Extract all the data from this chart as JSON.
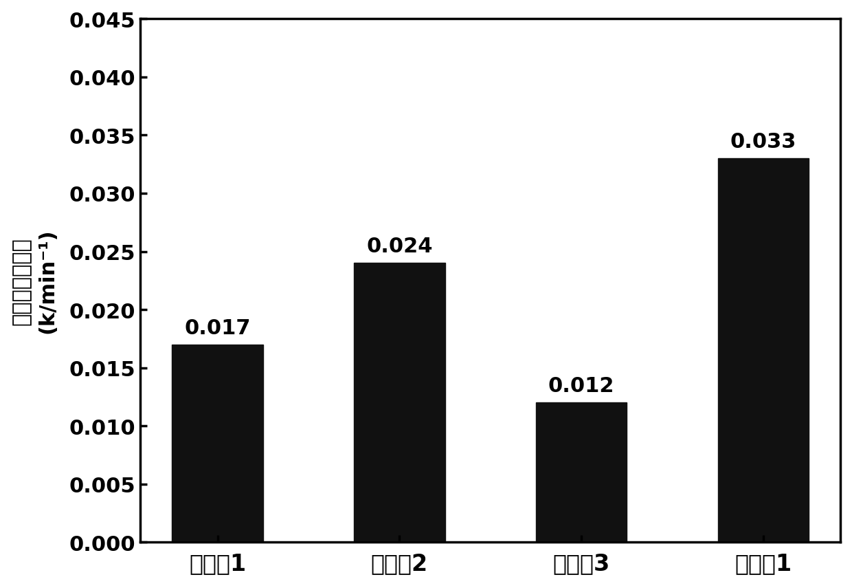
{
  "categories": [
    "对比例1",
    "对比例2",
    "对比例3",
    "实施例1"
  ],
  "values": [
    0.017,
    0.024,
    0.012,
    0.033
  ],
  "bar_color": "#111111",
  "ylabel_line1": "光降解反应常数",
  "ylabel_line2": "(k/min⁻¹)",
  "ylim": [
    0,
    0.045
  ],
  "yticks": [
    0.0,
    0.005,
    0.01,
    0.015,
    0.02,
    0.025,
    0.03,
    0.035,
    0.04,
    0.045
  ],
  "bar_labels": [
    "0.017",
    "0.024",
    "0.012",
    "0.033"
  ],
  "background_color": "#ffffff",
  "bar_width": 0.5,
  "tick_fontsize": 22,
  "ylabel_fontsize": 22,
  "annotation_fontsize": 22,
  "xtick_fontsize": 24
}
